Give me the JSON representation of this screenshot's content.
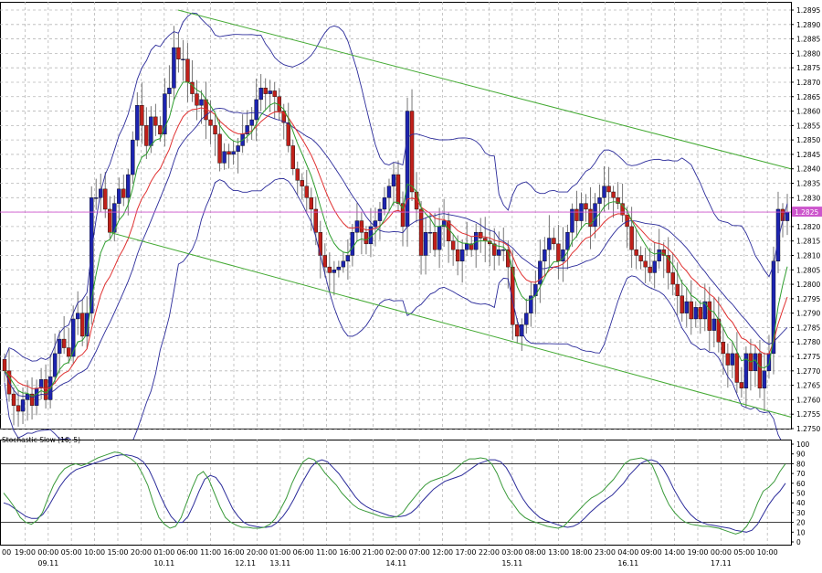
{
  "chart_data": [
    {
      "type": "candlestick",
      "symbol": "",
      "price_axis": {
        "min": 1.275,
        "max": 1.2895,
        "ticks": [
          "1.2895",
          "1.2890",
          "1.2885",
          "1.2880",
          "1.2875",
          "1.2870",
          "1.2865",
          "1.2860",
          "1.2855",
          "1.2850",
          "1.2845",
          "1.2840",
          "1.2835",
          "1.2830",
          "1.2825",
          "1.2820",
          "1.2815",
          "1.2810",
          "1.2805",
          "1.2800",
          "1.2795",
          "1.2790",
          "1.2785",
          "1.2780",
          "1.2775",
          "1.2770",
          "1.2765",
          "1.2760",
          "1.2755",
          "1.2750"
        ]
      },
      "current_price": {
        "label": "1.2825",
        "value": 1.2825
      },
      "colors": {
        "bull": "#1c23b0",
        "bear": "#c0201a",
        "grid": "#b8b8b8",
        "channel": "#44aa33",
        "bands": "#2b2b9a",
        "ema_fast": "#2e9e2e",
        "ema_slow": "#e03030",
        "price_line": "#cc55cc"
      },
      "close": [
        1.277,
        1.2762,
        1.2758,
        1.2756,
        1.276,
        1.2762,
        1.2758,
        1.2764,
        1.2767,
        1.276,
        1.2768,
        1.2776,
        1.2781,
        1.2778,
        1.2775,
        1.2788,
        1.279,
        1.2782,
        1.279,
        1.283,
        1.283,
        1.2833,
        1.2826,
        1.2818,
        1.2828,
        1.2833,
        1.283,
        1.2838,
        1.285,
        1.2862,
        1.2855,
        1.2848,
        1.2858,
        1.2855,
        1.2852,
        1.2866,
        1.2868,
        1.2882,
        1.2878,
        1.2878,
        1.287,
        1.2866,
        1.2862,
        1.2864,
        1.2857,
        1.2855,
        1.2852,
        1.2842,
        1.2846,
        1.2845,
        1.2846,
        1.2848,
        1.2852,
        1.2855,
        1.2857,
        1.2864,
        1.2868,
        1.2866,
        1.2867,
        1.2865,
        1.286,
        1.2856,
        1.2848,
        1.284,
        1.2836,
        1.2834,
        1.283,
        1.2826,
        1.2818,
        1.281,
        1.2806,
        1.2804,
        1.2805,
        1.2806,
        1.2808,
        1.281,
        1.2818,
        1.2822,
        1.2818,
        1.2814,
        1.282,
        1.2822,
        1.2826,
        1.283,
        1.2834,
        1.2838,
        1.2828,
        1.282,
        1.286,
        1.2832,
        1.2826,
        1.281,
        1.2818,
        1.2818,
        1.2812,
        1.282,
        1.2822,
        1.2815,
        1.2812,
        1.2808,
        1.2812,
        1.2814,
        1.2812,
        1.2818,
        1.2816,
        1.2815,
        1.2814,
        1.281,
        1.2812,
        1.2812,
        1.2806,
        1.2786,
        1.2782,
        1.2786,
        1.279,
        1.2796,
        1.28,
        1.2808,
        1.2812,
        1.2816,
        1.2814,
        1.2808,
        1.2812,
        1.2818,
        1.2826,
        1.2822,
        1.2828,
        1.2826,
        1.282,
        1.2828,
        1.283,
        1.2834,
        1.2832,
        1.283,
        1.2828,
        1.2824,
        1.282,
        1.2812,
        1.281,
        1.2808,
        1.2806,
        1.2804,
        1.2808,
        1.2812,
        1.281,
        1.2804,
        1.28,
        1.2796,
        1.279,
        1.2794,
        1.2788,
        1.2792,
        1.2788,
        1.2794,
        1.2784,
        1.2788,
        1.278,
        1.2776,
        1.2772,
        1.2776,
        1.2766,
        1.2764,
        1.2776,
        1.277,
        1.2776,
        1.2764,
        1.277,
        1.2776,
        1.2808,
        1.2826,
        1.2822,
        1.2825
      ],
      "ema_fast_last": 1.279,
      "ema_slow_last": 1.2782,
      "bollinger_upper_last": 1.2812,
      "bollinger_lower_last": 1.2756,
      "trend_channel": {
        "upper": [
          1.2895,
          1.284
        ],
        "lower": [
          1.2818,
          1.2754
        ]
      }
    },
    {
      "type": "line",
      "title": "Stochastic Slow (16, 5)",
      "y_axis": {
        "min": 0,
        "max": 100,
        "ticks": [
          "100",
          "90",
          "80",
          "70",
          "60",
          "50",
          "40",
          "30",
          "20",
          "10",
          "0"
        ]
      },
      "levels": [
        20,
        80
      ],
      "colors": {
        "main": "#3a9a3a",
        "signal": "#2b2b9a"
      },
      "main_values": [
        50,
        43,
        35,
        25,
        20,
        18,
        22,
        30,
        45,
        58,
        68,
        75,
        78,
        80,
        78,
        80,
        83,
        86,
        88,
        90,
        92,
        91,
        88,
        85,
        80,
        70,
        58,
        40,
        25,
        18,
        14,
        16,
        25,
        40,
        55,
        68,
        72,
        64,
        50,
        36,
        25,
        20,
        17,
        15,
        15,
        14,
        14,
        15,
        18,
        24,
        34,
        45,
        60,
        72,
        82,
        86,
        84,
        78,
        70,
        64,
        58,
        50,
        44,
        38,
        34,
        32,
        30,
        28,
        26,
        25,
        25,
        26,
        30,
        38,
        45,
        52,
        58,
        62,
        64,
        66,
        68,
        72,
        77,
        82,
        85,
        85,
        86,
        85,
        80,
        70,
        56,
        45,
        38,
        30,
        25,
        22,
        20,
        18,
        16,
        15,
        14,
        16,
        22,
        28,
        34,
        40,
        45,
        48,
        52,
        58,
        64,
        72,
        80,
        84,
        85,
        86,
        84,
        78,
        65,
        50,
        38,
        30,
        24,
        20,
        18,
        17,
        16,
        16,
        15,
        14,
        12,
        10,
        8,
        10,
        16,
        26,
        40,
        52,
        56,
        62,
        72,
        80
      ],
      "signal_values": [
        40,
        38,
        34,
        30,
        26,
        24,
        24,
        28,
        36,
        46,
        56,
        64,
        70,
        74,
        76,
        78,
        80,
        82,
        84,
        86,
        88,
        89,
        89,
        88,
        86,
        82,
        74,
        62,
        48,
        36,
        26,
        20,
        20,
        26,
        38,
        52,
        64,
        68,
        66,
        58,
        46,
        34,
        26,
        20,
        17,
        16,
        15,
        15,
        16,
        20,
        26,
        34,
        44,
        56,
        66,
        76,
        82,
        84,
        82,
        76,
        70,
        62,
        54,
        46,
        40,
        36,
        33,
        31,
        29,
        27,
        26,
        26,
        27,
        30,
        35,
        42,
        48,
        54,
        58,
        62,
        64,
        66,
        68,
        72,
        76,
        80,
        82,
        84,
        84,
        82,
        76,
        66,
        54,
        44,
        36,
        30,
        25,
        22,
        20,
        18,
        16,
        15,
        16,
        19,
        24,
        30,
        35,
        40,
        44,
        48,
        54,
        60,
        68,
        74,
        80,
        83,
        84,
        82,
        76,
        66,
        54,
        44,
        35,
        28,
        23,
        20,
        18,
        17,
        16,
        15,
        14,
        12,
        11,
        10,
        12,
        18,
        28,
        38,
        46,
        52,
        60
      ]
    }
  ],
  "time_axis": {
    "hours": [
      "00",
      "19:00",
      "00:00",
      "05:00",
      "10:00",
      "15:00",
      "20:00",
      "01:00",
      "06:00",
      "11:00",
      "16:00",
      "20:00",
      "01:00",
      "06:00",
      "11:00",
      "16:00",
      "21:00",
      "02:00",
      "07:00",
      "12:00",
      "17:00",
      "22:00",
      "03:00",
      "08:00",
      "13:00",
      "18:00",
      "23:00",
      "04:00",
      "09:00",
      "14:00",
      "19:00",
      "00:00",
      "05:00",
      "10:00"
    ],
    "dates": [
      {
        "label": "09.11",
        "at_hour": 2
      },
      {
        "label": "10.11",
        "at_hour": 7
      },
      {
        "label": "12.11",
        "at_hour": 10.5
      },
      {
        "label": "13.11",
        "at_hour": 12
      },
      {
        "label": "14.11",
        "at_hour": 17
      },
      {
        "label": "15.11",
        "at_hour": 22
      },
      {
        "label": "16.11",
        "at_hour": 27
      },
      {
        "label": "17.11",
        "at_hour": 31
      }
    ]
  }
}
